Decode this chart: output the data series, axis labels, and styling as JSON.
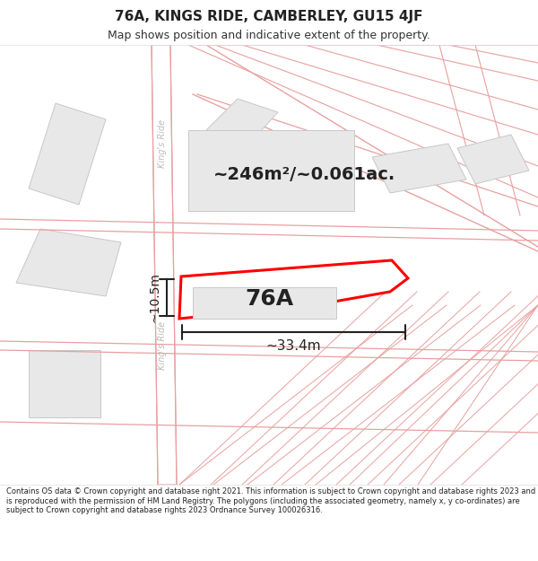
{
  "title": "76A, KINGS RIDE, CAMBERLEY, GU15 4JF",
  "subtitle": "Map shows position and indicative extent of the property.",
  "footer": "Contains OS data © Crown copyright and database right 2021. This information is subject to Crown copyright and database rights 2023 and is reproduced with the permission of HM Land Registry. The polygons (including the associated geometry, namely x, y co-ordinates) are subject to Crown copyright and database rights 2023 Ordnance Survey 100026316.",
  "map_bg": "#fafafa",
  "header_bg": "#ffffff",
  "road_color_outline": "#e8a0a0",
  "building_color": "#e8e8e8",
  "building_outline": "#c8c8c8",
  "highlight_color": "#ff0000",
  "highlight_fill": "#ffffff",
  "dim_color": "#333333",
  "area_label": "~246m²/~0.061ac.",
  "width_label": "~33.4m",
  "height_label": "~10.5m",
  "plot_label": "76A",
  "road_label": "King's Ride",
  "road_label2": "King's Ride"
}
